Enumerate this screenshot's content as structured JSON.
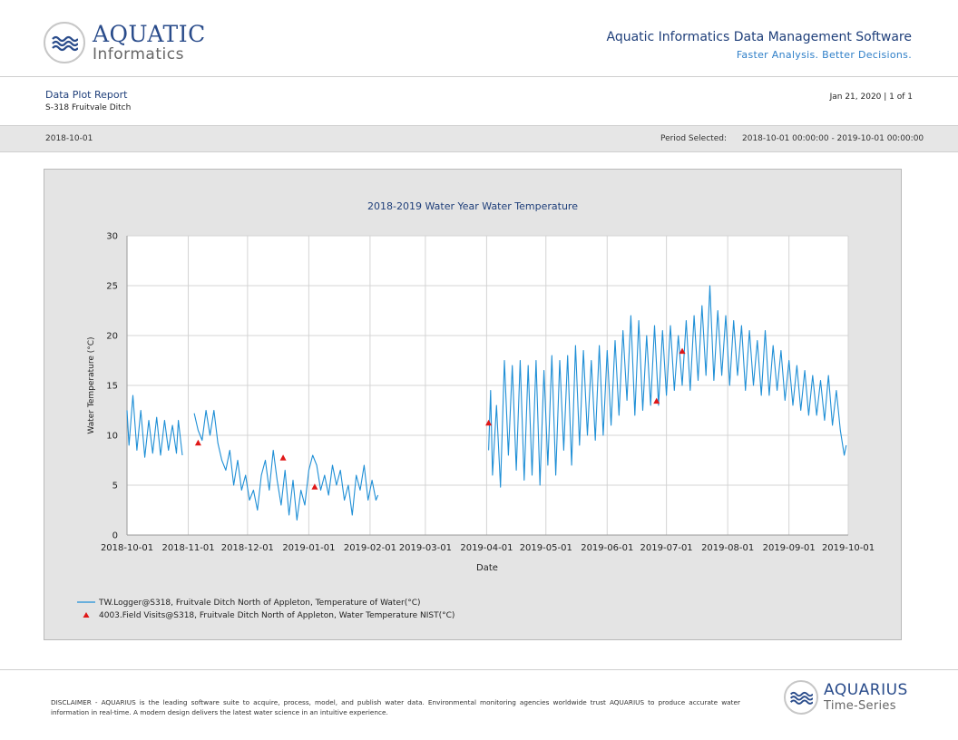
{
  "header": {
    "logo_line1": "AQUATIC",
    "logo_line2": "Informatics",
    "app_title": "Aquatic Informatics Data Management Software",
    "tagline": "Faster Analysis. Better Decisions."
  },
  "report": {
    "title": "Data Plot Report",
    "location": "S-318 Fruitvale Ditch",
    "date_page": "Jan 21, 2020 | 1 of 1"
  },
  "period": {
    "start": "2018-10-01",
    "label": "Period Selected:",
    "value": "2018-10-01 00:00:00 - 2019-10-01 00:00:00"
  },
  "footer": {
    "disclaimer": "DISCLAIMER - AQUARIUS is the leading software suite to acquire, process, model, and publish water data. Environmental monitoring agencies worldwide trust AQUARIUS to produce accurate water information in real-time. A modern design delivers the latest water science in an intuitive experience.",
    "logo_line1": "AQUARIUS",
    "logo_line2": "Time-Series"
  },
  "colors": {
    "line": "#1f8fd6",
    "marker": "#e01818",
    "title": "#1f3f7a",
    "plot_bg": "#ffffff",
    "frame_bg": "#e4e4e4",
    "grid": "#d4d4d4"
  },
  "chart_data": {
    "type": "line",
    "title": "2018-2019 Water Year Water Temperature",
    "xlabel": "Date",
    "ylabel": "Water Temperature (°C)",
    "ylim": [
      0,
      30
    ],
    "xlim": [
      "2018-10-01",
      "2019-10-01"
    ],
    "x_ticks": [
      "2018-10-01",
      "2018-11-01",
      "2018-12-01",
      "2019-01-01",
      "2019-02-01",
      "2019-03-01",
      "2019-04-01",
      "2019-05-01",
      "2019-06-01",
      "2019-07-01",
      "2019-08-01",
      "2019-09-01",
      "2019-10-01"
    ],
    "y_ticks": [
      0,
      5,
      10,
      15,
      20,
      25,
      30
    ],
    "grid": true,
    "legend_position": "bottom-left",
    "series": [
      {
        "name": "TW.Logger@S318, Fruitvale Ditch North of Appleton, Temperature of Water(°C)",
        "kind": "line",
        "segments": [
          {
            "x": [
              "2018-10-01",
              "2018-10-02",
              "2018-10-04",
              "2018-10-06",
              "2018-10-08",
              "2018-10-10",
              "2018-10-12",
              "2018-10-14",
              "2018-10-16",
              "2018-10-18",
              "2018-10-20",
              "2018-10-22",
              "2018-10-24",
              "2018-10-26",
              "2018-10-27",
              "2018-10-29"
            ],
            "y": [
              12.5,
              9.0,
              14.0,
              8.5,
              12.5,
              7.8,
              11.5,
              8.2,
              11.8,
              8.0,
              11.5,
              8.5,
              11.0,
              8.2,
              11.5,
              8.0
            ]
          },
          {
            "x": [
              "2018-11-04",
              "2018-11-06",
              "2018-11-08",
              "2018-11-10",
              "2018-11-12",
              "2018-11-14",
              "2018-11-16",
              "2018-11-18",
              "2018-11-20",
              "2018-11-22",
              "2018-11-24",
              "2018-11-26",
              "2018-11-28",
              "2018-11-30",
              "2018-12-02",
              "2018-12-04",
              "2018-12-06",
              "2018-12-08",
              "2018-12-10",
              "2018-12-12",
              "2018-12-14",
              "2018-12-16",
              "2018-12-18",
              "2018-12-20",
              "2018-12-22",
              "2018-12-24",
              "2018-12-26",
              "2018-12-28",
              "2018-12-30",
              "2019-01-01",
              "2019-01-03",
              "2019-01-05",
              "2019-01-07",
              "2019-01-09",
              "2019-01-11",
              "2019-01-13",
              "2019-01-15",
              "2019-01-17",
              "2019-01-19",
              "2019-01-21",
              "2019-01-23",
              "2019-01-25",
              "2019-01-27",
              "2019-01-29",
              "2019-01-31",
              "2019-02-02",
              "2019-02-04",
              "2019-02-05"
            ],
            "y": [
              12.2,
              10.5,
              9.5,
              12.5,
              10.0,
              12.5,
              9.2,
              7.5,
              6.5,
              8.5,
              5.0,
              7.5,
              4.5,
              6.0,
              3.5,
              4.5,
              2.5,
              6.0,
              7.5,
              4.5,
              8.5,
              5.5,
              3.0,
              6.5,
              2.0,
              5.5,
              1.5,
              4.5,
              3.0,
              6.5,
              8.0,
              7.0,
              4.5,
              6.0,
              4.0,
              7.0,
              5.0,
              6.5,
              3.5,
              5.0,
              2.0,
              6.0,
              4.5,
              7.0,
              3.5,
              5.5,
              3.5,
              4.0
            ]
          },
          {
            "x": [
              "2019-04-02",
              "2019-04-03",
              "2019-04-04",
              "2019-04-06",
              "2019-04-08",
              "2019-04-10",
              "2019-04-12",
              "2019-04-14",
              "2019-04-16",
              "2019-04-18",
              "2019-04-20",
              "2019-04-22",
              "2019-04-24",
              "2019-04-26",
              "2019-04-28",
              "2019-04-30",
              "2019-05-02",
              "2019-05-04",
              "2019-05-06",
              "2019-05-08",
              "2019-05-10",
              "2019-05-12",
              "2019-05-14",
              "2019-05-16",
              "2019-05-18",
              "2019-05-20",
              "2019-05-22",
              "2019-05-24",
              "2019-05-26",
              "2019-05-28",
              "2019-05-30",
              "2019-06-01",
              "2019-06-03",
              "2019-06-05",
              "2019-06-07",
              "2019-06-09",
              "2019-06-11",
              "2019-06-13",
              "2019-06-15",
              "2019-06-17",
              "2019-06-19",
              "2019-06-21",
              "2019-06-23",
              "2019-06-25",
              "2019-06-27",
              "2019-06-29",
              "2019-07-01",
              "2019-07-03",
              "2019-07-05",
              "2019-07-07",
              "2019-07-09",
              "2019-07-11",
              "2019-07-13",
              "2019-07-15",
              "2019-07-17",
              "2019-07-19",
              "2019-07-21",
              "2019-07-23",
              "2019-07-25",
              "2019-07-27",
              "2019-07-29",
              "2019-07-31",
              "2019-08-02",
              "2019-08-04",
              "2019-08-06",
              "2019-08-08",
              "2019-08-10",
              "2019-08-12",
              "2019-08-14",
              "2019-08-16",
              "2019-08-18",
              "2019-08-20",
              "2019-08-22",
              "2019-08-24",
              "2019-08-26",
              "2019-08-28",
              "2019-08-30",
              "2019-09-01",
              "2019-09-03",
              "2019-09-05",
              "2019-09-07",
              "2019-09-09",
              "2019-09-11",
              "2019-09-13",
              "2019-09-15",
              "2019-09-17",
              "2019-09-19",
              "2019-09-21",
              "2019-09-23",
              "2019-09-25",
              "2019-09-27",
              "2019-09-29",
              "2019-09-30"
            ],
            "y": [
              8.5,
              14.5,
              6.0,
              13.0,
              4.8,
              17.5,
              8.0,
              17.0,
              6.5,
              17.5,
              5.5,
              17.0,
              6.0,
              17.5,
              5.0,
              16.5,
              7.0,
              18.0,
              6.0,
              17.5,
              8.5,
              18.0,
              7.0,
              19.0,
              9.0,
              18.5,
              10.0,
              17.5,
              9.5,
              19.0,
              10.0,
              18.5,
              11.0,
              19.5,
              12.0,
              20.5,
              13.5,
              22.0,
              12.0,
              21.5,
              12.5,
              20.0,
              13.0,
              21.0,
              13.0,
              20.5,
              14.0,
              21.0,
              14.5,
              20.0,
              15.0,
              21.5,
              14.5,
              22.0,
              15.5,
              23.0,
              16.0,
              25.0,
              15.5,
              22.5,
              16.0,
              22.0,
              15.0,
              21.5,
              16.0,
              21.0,
              14.5,
              20.5,
              15.0,
              19.5,
              14.0,
              20.5,
              14.0,
              19.0,
              14.5,
              18.5,
              13.5,
              17.5,
              13.0,
              17.0,
              12.5,
              16.5,
              12.0,
              16.0,
              12.0,
              15.5,
              11.5,
              16.0,
              11.0,
              14.5,
              10.5,
              8.0,
              9.0
            ]
          }
        ]
      },
      {
        "name": "4003.Field Visits@S318, Fruitvale Ditch North of Appleton, Water Temperature NIST(°C)",
        "kind": "marker",
        "x": [
          "2018-11-06",
          "2018-12-19",
          "2019-01-04",
          "2019-04-02",
          "2019-06-26",
          "2019-07-09"
        ],
        "y": [
          9.2,
          7.7,
          4.8,
          11.2,
          13.4,
          18.4
        ]
      }
    ]
  }
}
